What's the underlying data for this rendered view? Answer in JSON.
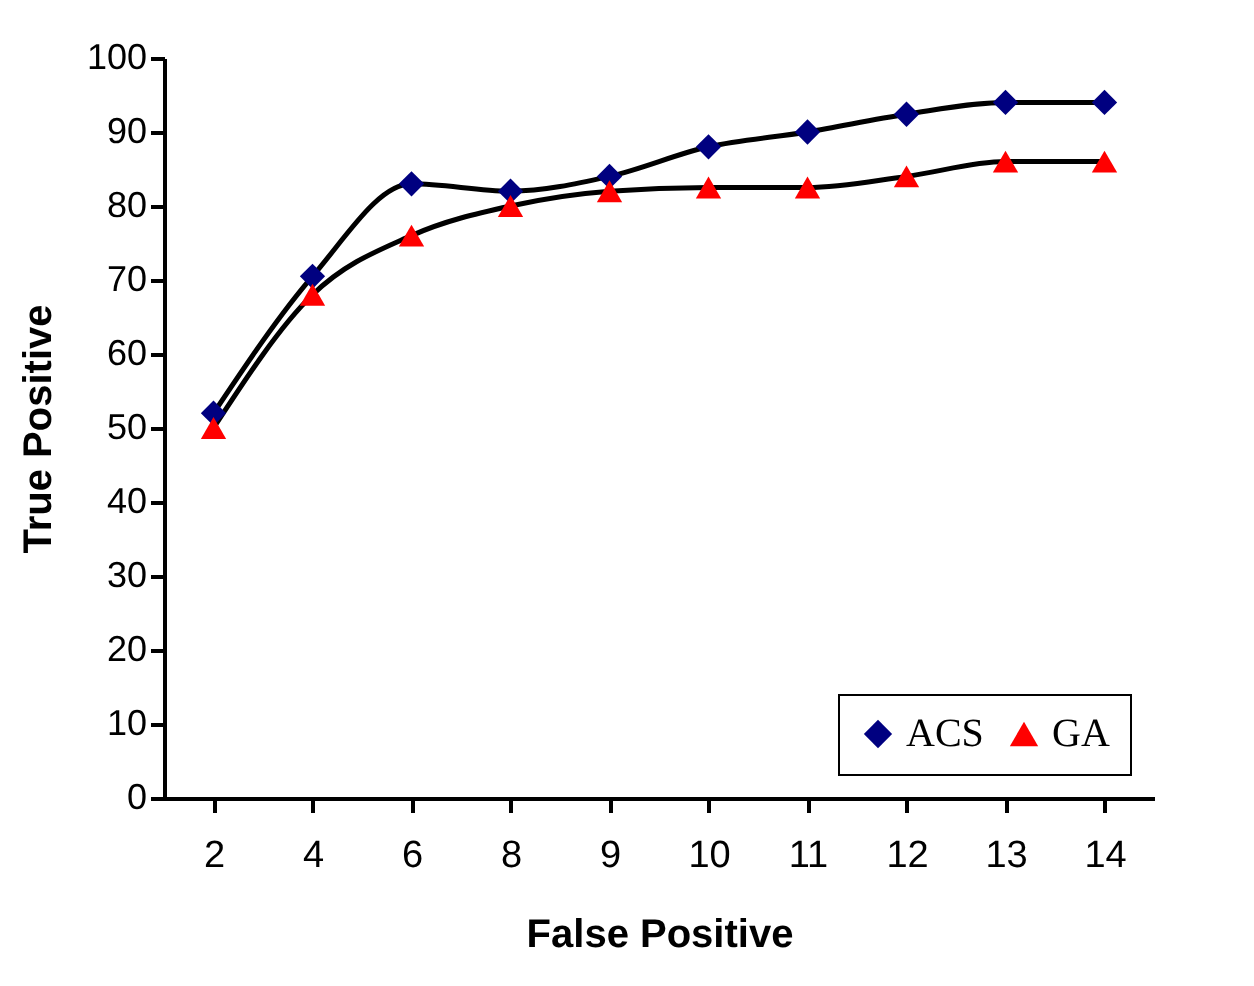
{
  "chart_data": {
    "type": "line",
    "xlabel": "False Positive",
    "ylabel": "True Positive",
    "categories": [
      "2",
      "4",
      "6",
      "8",
      "9",
      "10",
      "11",
      "12",
      "13",
      "14"
    ],
    "ylim": [
      0,
      100
    ],
    "yticks": [
      0,
      10,
      20,
      30,
      40,
      50,
      60,
      70,
      80,
      90,
      100
    ],
    "grid": false,
    "legend": "bottom right",
    "series": [
      {
        "name": "ACS",
        "color": "#000080",
        "marker": "diamond",
        "values": [
          52,
          70.5,
          83,
          82,
          84,
          88,
          90,
          92.4,
          94,
          94
        ]
      },
      {
        "name": "GA",
        "color": "#ff0000",
        "marker": "triangle",
        "values": [
          50,
          68,
          76,
          80,
          82,
          82.5,
          82.5,
          84,
          86,
          86
        ]
      }
    ]
  }
}
